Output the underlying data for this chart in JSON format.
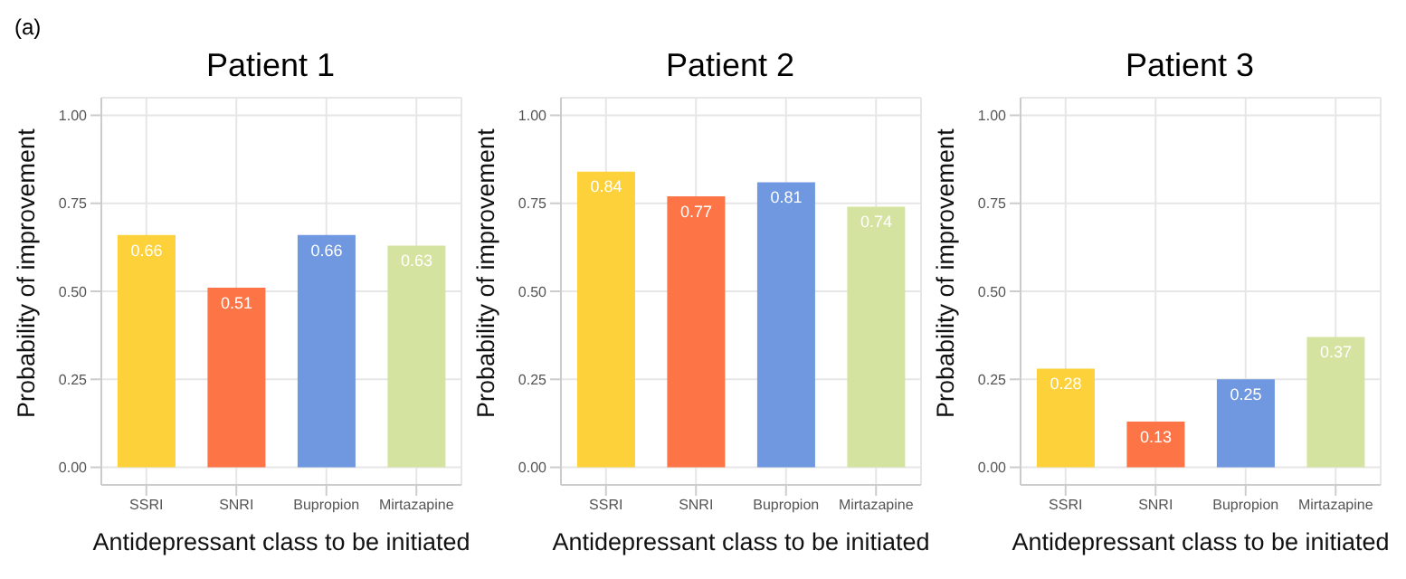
{
  "chart_data": [
    {
      "type": "bar",
      "title": "Patient 1",
      "xlabel": "Antidepressant class to be initiated",
      "ylabel": "Probability of improvement",
      "annotations": [
        "(a)"
      ],
      "categories": [
        "SSRI",
        "SNRI",
        "Bupropion",
        "Mirtazapine"
      ],
      "values": [
        0.66,
        0.51,
        0.66,
        0.63
      ],
      "colors": [
        "#fdd13a",
        "#fd7446",
        "#6f98e0",
        "#d4e3a0"
      ],
      "ylim": [
        -0.05,
        1.05
      ],
      "yticks": [
        {
          "value": 0,
          "label": "0.00"
        },
        {
          "value": 0.25,
          "label": "0.25"
        },
        {
          "value": 0.5,
          "label": "0.50"
        },
        {
          "value": 0.75,
          "label": "0.75"
        },
        {
          "value": 1,
          "label": "1.00"
        }
      ],
      "grid": true,
      "data_labels": true
    },
    {
      "type": "bar",
      "title": "Patient 2",
      "xlabel": "Antidepressant class to be initiated",
      "ylabel": "Probability of improvement",
      "categories": [
        "SSRI",
        "SNRI",
        "Bupropion",
        "Mirtazapine"
      ],
      "values": [
        0.84,
        0.77,
        0.81,
        0.74
      ],
      "colors": [
        "#fdd13a",
        "#fd7446",
        "#6f98e0",
        "#d4e3a0"
      ],
      "ylim": [
        -0.05,
        1.05
      ],
      "yticks": [
        {
          "value": 0,
          "label": "0.00"
        },
        {
          "value": 0.25,
          "label": "0.25"
        },
        {
          "value": 0.5,
          "label": "0.50"
        },
        {
          "value": 0.75,
          "label": "0.75"
        },
        {
          "value": 1,
          "label": "1.00"
        }
      ],
      "grid": true,
      "data_labels": true
    },
    {
      "type": "bar",
      "title": "Patient 3",
      "xlabel": "Antidepressant class to be initiated",
      "ylabel": "Probability of improvement",
      "categories": [
        "SSRI",
        "SNRI",
        "Bupropion",
        "Mirtazapine"
      ],
      "values": [
        0.28,
        0.13,
        0.25,
        0.37
      ],
      "colors": [
        "#fdd13a",
        "#fd7446",
        "#6f98e0",
        "#d4e3a0"
      ],
      "ylim": [
        -0.05,
        1.05
      ],
      "yticks": [
        {
          "value": 0,
          "label": "0.00"
        },
        {
          "value": 0.25,
          "label": "0.25"
        },
        {
          "value": 0.5,
          "label": "0.50"
        },
        {
          "value": 0.75,
          "label": "0.75"
        },
        {
          "value": 1,
          "label": "1.00"
        }
      ],
      "grid": true,
      "data_labels": true
    }
  ]
}
